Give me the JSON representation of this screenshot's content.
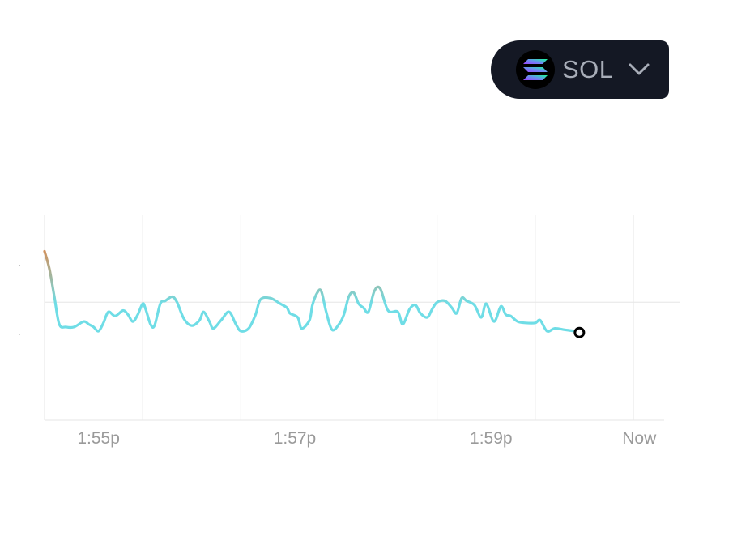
{
  "token_selector": {
    "symbol": "SOL",
    "logo_icon": "solana-logo-icon",
    "dropdown_icon": "chevron-down-icon"
  },
  "colors": {
    "selector_bg": "#141824",
    "line_low": "#6fdde6",
    "line_high": "#ee7a33",
    "grid": "#e6e6e6",
    "tick_label": "#9a9a9a"
  },
  "chart_data": {
    "type": "line",
    "title": "",
    "xlabel": "",
    "ylabel": "",
    "x_ticks": [
      "1:55p",
      "1:57p",
      "1:59p",
      "Now"
    ],
    "x_range": [
      0,
      6
    ],
    "y_range": [
      0,
      100
    ],
    "grid": "vertical lines at each half-minute, one horizontal reference line",
    "reference_line": 51,
    "end_marker": "hollow circle at the last point",
    "series": [
      {
        "values": [
          [
            0.0,
            88
          ],
          [
            0.05,
            75
          ],
          [
            0.1,
            55
          ],
          [
            0.15,
            35
          ],
          [
            0.22,
            33
          ],
          [
            0.3,
            33
          ],
          [
            0.4,
            37
          ],
          [
            0.45,
            35
          ],
          [
            0.5,
            33
          ],
          [
            0.55,
            30
          ],
          [
            0.6,
            36
          ],
          [
            0.65,
            44
          ],
          [
            0.72,
            41
          ],
          [
            0.8,
            45
          ],
          [
            0.85,
            42
          ],
          [
            0.9,
            37
          ],
          [
            0.95,
            42
          ],
          [
            1.0,
            50
          ],
          [
            1.03,
            46
          ],
          [
            1.08,
            35
          ],
          [
            1.12,
            34
          ],
          [
            1.18,
            50
          ],
          [
            1.23,
            52
          ],
          [
            1.3,
            55
          ],
          [
            1.35,
            51
          ],
          [
            1.42,
            39
          ],
          [
            1.5,
            34
          ],
          [
            1.58,
            38
          ],
          [
            1.62,
            44
          ],
          [
            1.68,
            37
          ],
          [
            1.72,
            32
          ],
          [
            1.8,
            38
          ],
          [
            1.88,
            44
          ],
          [
            1.95,
            35
          ],
          [
            2.0,
            30
          ],
          [
            2.08,
            32
          ],
          [
            2.15,
            42
          ],
          [
            2.2,
            53
          ],
          [
            2.3,
            54
          ],
          [
            2.4,
            50
          ],
          [
            2.47,
            47
          ],
          [
            2.5,
            43
          ],
          [
            2.58,
            40
          ],
          [
            2.62,
            32
          ],
          [
            2.7,
            38
          ],
          [
            2.73,
            49
          ],
          [
            2.78,
            58
          ],
          [
            2.82,
            59
          ],
          [
            2.87,
            44
          ],
          [
            2.93,
            31
          ],
          [
            3.0,
            35
          ],
          [
            3.05,
            42
          ],
          [
            3.1,
            55
          ],
          [
            3.15,
            58
          ],
          [
            3.2,
            50
          ],
          [
            3.25,
            47
          ],
          [
            3.3,
            44
          ],
          [
            3.36,
            59
          ],
          [
            3.42,
            61
          ],
          [
            3.5,
            45
          ],
          [
            3.6,
            44
          ],
          [
            3.65,
            35
          ],
          [
            3.72,
            46
          ],
          [
            3.78,
            49
          ],
          [
            3.83,
            43
          ],
          [
            3.9,
            40
          ],
          [
            3.95,
            46
          ],
          [
            4.0,
            51
          ],
          [
            4.08,
            52
          ],
          [
            4.15,
            47
          ],
          [
            4.2,
            43
          ],
          [
            4.25,
            54
          ],
          [
            4.3,
            52
          ],
          [
            4.38,
            49
          ],
          [
            4.45,
            40
          ],
          [
            4.5,
            50
          ],
          [
            4.58,
            37
          ],
          [
            4.65,
            48
          ],
          [
            4.7,
            42
          ],
          [
            4.75,
            41
          ],
          [
            4.82,
            37
          ],
          [
            4.9,
            36
          ],
          [
            5.0,
            36
          ],
          [
            5.05,
            38
          ],
          [
            5.12,
            30
          ],
          [
            5.2,
            32
          ],
          [
            5.3,
            31
          ],
          [
            5.4,
            30
          ],
          [
            5.45,
            29
          ]
        ]
      }
    ]
  }
}
